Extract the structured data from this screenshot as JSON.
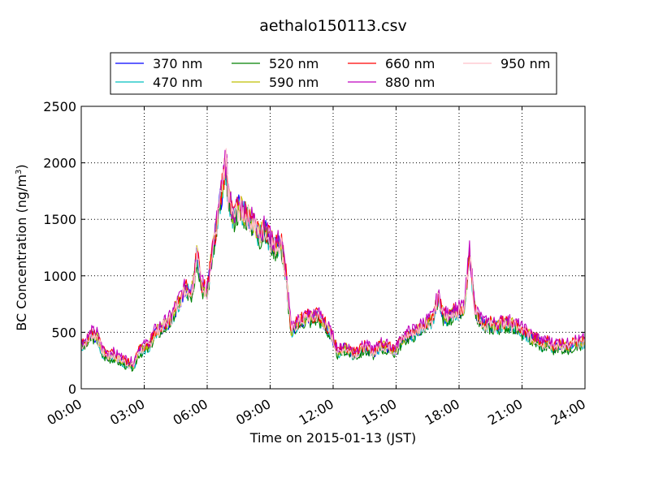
{
  "chart_data": {
    "type": "line",
    "title": "aethalo150113.csv",
    "xlabel": "Time on 2015-01-13 (JST)",
    "ylabel_main": "BC Concentration (ng/m",
    "ylabel_sup": "3",
    "ylabel_end": ")",
    "xlim": [
      0,
      24
    ],
    "ylim": [
      0,
      2500
    ],
    "xticks": [
      0,
      3,
      6,
      9,
      12,
      15,
      18,
      21,
      24
    ],
    "xtick_labels": [
      "00:00",
      "03:00",
      "06:00",
      "09:00",
      "12:00",
      "15:00",
      "18:00",
      "21:00",
      "24:00"
    ],
    "yticks": [
      0,
      500,
      1000,
      1500,
      2000,
      2500
    ],
    "ytick_labels": [
      "0",
      "500",
      "1000",
      "1500",
      "2000",
      "2500"
    ],
    "grid": true,
    "legend_placement": "top-center",
    "x": [
      0,
      0.25,
      0.5,
      0.75,
      1,
      1.25,
      1.5,
      1.75,
      2,
      2.25,
      2.5,
      2.75,
      3,
      3.25,
      3.5,
      3.75,
      4,
      4.25,
      4.5,
      4.75,
      5,
      5.25,
      5.4,
      5.5,
      5.75,
      6,
      6.25,
      6.5,
      6.75,
      6.9,
      7,
      7.25,
      7.5,
      7.75,
      8,
      8.25,
      8.5,
      8.75,
      9,
      9.25,
      9.5,
      9.75,
      10,
      10.25,
      10.5,
      10.75,
      11,
      11.25,
      11.5,
      11.75,
      12,
      12.25,
      12.5,
      12.75,
      13,
      13.25,
      13.5,
      13.75,
      14,
      14.25,
      14.5,
      14.75,
      15,
      15.25,
      15.5,
      15.75,
      16,
      16.25,
      16.5,
      16.75,
      17,
      17.25,
      17.5,
      17.75,
      18,
      18.25,
      18.5,
      18.75,
      19,
      19.25,
      19.5,
      19.75,
      20,
      20.25,
      20.5,
      20.75,
      21,
      21.25,
      21.5,
      21.75,
      22,
      22.25,
      22.5,
      22.75,
      23,
      23.25,
      23.5,
      23.75,
      24
    ],
    "series": [
      {
        "name": "370 nm",
        "color": "#0000ff",
        "offset": 0,
        "values": [
          380,
          400,
          470,
          460,
          320,
          280,
          290,
          260,
          240,
          210,
          200,
          330,
          350,
          380,
          480,
          520,
          560,
          600,
          700,
          800,
          880,
          850,
          1000,
          1200,
          900,
          850,
          1200,
          1500,
          1800,
          2000,
          1700,
          1500,
          1600,
          1550,
          1500,
          1450,
          1350,
          1400,
          1300,
          1250,
          1300,
          1000,
          500,
          560,
          600,
          620,
          610,
          640,
          590,
          520,
          420,
          300,
          360,
          330,
          300,
          320,
          360,
          330,
          310,
          380,
          360,
          340,
          330,
          420,
          460,
          480,
          500,
          550,
          580,
          600,
          800,
          640,
          620,
          670,
          680,
          700,
          1200,
          700,
          600,
          550,
          560,
          540,
          560,
          570,
          560,
          540,
          500,
          480,
          430,
          420,
          380,
          400,
          360,
          380,
          370,
          360,
          400,
          390,
          410
        ]
      },
      {
        "name": "470 nm",
        "color": "#00bfbf",
        "offset": -10,
        "values": [
          380,
          400,
          470,
          460,
          320,
          280,
          290,
          260,
          240,
          210,
          200,
          330,
          350,
          380,
          480,
          520,
          560,
          600,
          700,
          800,
          880,
          850,
          1000,
          1200,
          900,
          850,
          1200,
          1500,
          1800,
          2000,
          1700,
          1500,
          1600,
          1550,
          1500,
          1450,
          1350,
          1400,
          1300,
          1250,
          1300,
          1000,
          500,
          560,
          600,
          620,
          610,
          640,
          590,
          520,
          420,
          300,
          360,
          330,
          300,
          320,
          360,
          330,
          310,
          380,
          360,
          340,
          330,
          420,
          460,
          480,
          500,
          550,
          580,
          600,
          800,
          640,
          620,
          670,
          680,
          700,
          1200,
          700,
          600,
          550,
          560,
          540,
          560,
          570,
          560,
          540,
          500,
          480,
          430,
          420,
          380,
          400,
          360,
          380,
          370,
          360,
          400,
          390,
          410
        ]
      },
      {
        "name": "520 nm",
        "color": "#008000",
        "offset": -20,
        "values": [
          380,
          400,
          470,
          460,
          320,
          280,
          290,
          260,
          240,
          210,
          200,
          330,
          350,
          380,
          480,
          520,
          560,
          600,
          700,
          800,
          880,
          850,
          1000,
          1200,
          900,
          850,
          1200,
          1500,
          1800,
          2000,
          1700,
          1500,
          1600,
          1550,
          1500,
          1450,
          1350,
          1400,
          1300,
          1250,
          1300,
          1000,
          500,
          560,
          600,
          620,
          610,
          640,
          590,
          520,
          420,
          300,
          360,
          330,
          300,
          320,
          360,
          330,
          310,
          380,
          360,
          340,
          330,
          420,
          460,
          480,
          500,
          550,
          580,
          600,
          800,
          640,
          620,
          670,
          680,
          700,
          1200,
          700,
          600,
          550,
          560,
          540,
          560,
          570,
          560,
          540,
          500,
          480,
          430,
          420,
          380,
          400,
          360,
          380,
          370,
          360,
          400,
          390,
          410
        ]
      },
      {
        "name": "590 nm",
        "color": "#bfbf00",
        "offset": 15,
        "values": [
          380,
          400,
          470,
          460,
          320,
          280,
          290,
          260,
          240,
          210,
          200,
          330,
          350,
          380,
          480,
          520,
          560,
          600,
          700,
          800,
          880,
          850,
          1000,
          1200,
          900,
          850,
          1200,
          1500,
          1800,
          2000,
          1700,
          1500,
          1600,
          1550,
          1500,
          1450,
          1350,
          1400,
          1300,
          1250,
          1300,
          1000,
          500,
          560,
          600,
          620,
          610,
          640,
          590,
          520,
          420,
          300,
          360,
          330,
          300,
          320,
          360,
          330,
          310,
          380,
          360,
          340,
          330,
          420,
          460,
          480,
          500,
          550,
          580,
          600,
          800,
          640,
          620,
          670,
          680,
          700,
          1200,
          700,
          600,
          550,
          560,
          540,
          560,
          570,
          560,
          540,
          500,
          480,
          430,
          420,
          380,
          400,
          360,
          380,
          370,
          360,
          400,
          390,
          410
        ]
      },
      {
        "name": "660 nm",
        "color": "#ff0000",
        "offset": 25,
        "values": [
          380,
          400,
          470,
          460,
          320,
          280,
          290,
          260,
          240,
          210,
          200,
          330,
          350,
          380,
          480,
          520,
          560,
          600,
          700,
          800,
          880,
          850,
          1000,
          1200,
          900,
          850,
          1200,
          1500,
          1800,
          2000,
          1700,
          1500,
          1600,
          1550,
          1500,
          1450,
          1350,
          1400,
          1300,
          1250,
          1300,
          1000,
          500,
          560,
          600,
          620,
          610,
          640,
          590,
          520,
          420,
          300,
          360,
          330,
          300,
          320,
          360,
          330,
          310,
          380,
          360,
          340,
          330,
          420,
          460,
          480,
          500,
          550,
          580,
          600,
          800,
          640,
          620,
          670,
          680,
          700,
          1200,
          700,
          600,
          550,
          560,
          540,
          560,
          570,
          560,
          540,
          500,
          480,
          430,
          420,
          380,
          400,
          360,
          380,
          370,
          360,
          400,
          390,
          410
        ]
      },
      {
        "name": "880 nm",
        "color": "#bf00bf",
        "offset": 40,
        "values": [
          380,
          400,
          470,
          460,
          320,
          280,
          290,
          260,
          240,
          210,
          200,
          330,
          350,
          380,
          480,
          520,
          560,
          600,
          700,
          800,
          880,
          850,
          1000,
          1200,
          900,
          850,
          1200,
          1500,
          1800,
          2000,
          1700,
          1500,
          1600,
          1550,
          1500,
          1450,
          1350,
          1400,
          1300,
          1250,
          1300,
          1000,
          500,
          560,
          600,
          620,
          610,
          640,
          590,
          520,
          420,
          300,
          360,
          330,
          300,
          320,
          360,
          330,
          310,
          380,
          360,
          340,
          330,
          420,
          460,
          480,
          500,
          550,
          580,
          600,
          800,
          640,
          620,
          670,
          680,
          700,
          1200,
          700,
          600,
          550,
          560,
          540,
          560,
          570,
          560,
          540,
          500,
          480,
          430,
          420,
          380,
          400,
          360,
          380,
          370,
          360,
          400,
          390,
          410
        ]
      },
      {
        "name": "950 nm",
        "color": "#ffc0cb",
        "offset": 5,
        "values": [
          380,
          400,
          470,
          460,
          320,
          280,
          290,
          260,
          240,
          210,
          200,
          330,
          350,
          380,
          480,
          520,
          560,
          600,
          700,
          800,
          880,
          850,
          1000,
          1200,
          900,
          850,
          1200,
          1500,
          1800,
          2000,
          1700,
          1500,
          1600,
          1550,
          1500,
          1450,
          1350,
          1400,
          1300,
          1250,
          1300,
          1000,
          500,
          560,
          600,
          620,
          610,
          640,
          590,
          520,
          420,
          300,
          360,
          330,
          300,
          320,
          360,
          330,
          310,
          380,
          360,
          340,
          330,
          420,
          460,
          480,
          500,
          550,
          580,
          600,
          800,
          640,
          620,
          670,
          680,
          700,
          1200,
          700,
          600,
          550,
          560,
          540,
          560,
          570,
          560,
          540,
          500,
          480,
          430,
          420,
          380,
          400,
          360,
          380,
          370,
          360,
          400,
          390,
          410
        ]
      }
    ]
  }
}
